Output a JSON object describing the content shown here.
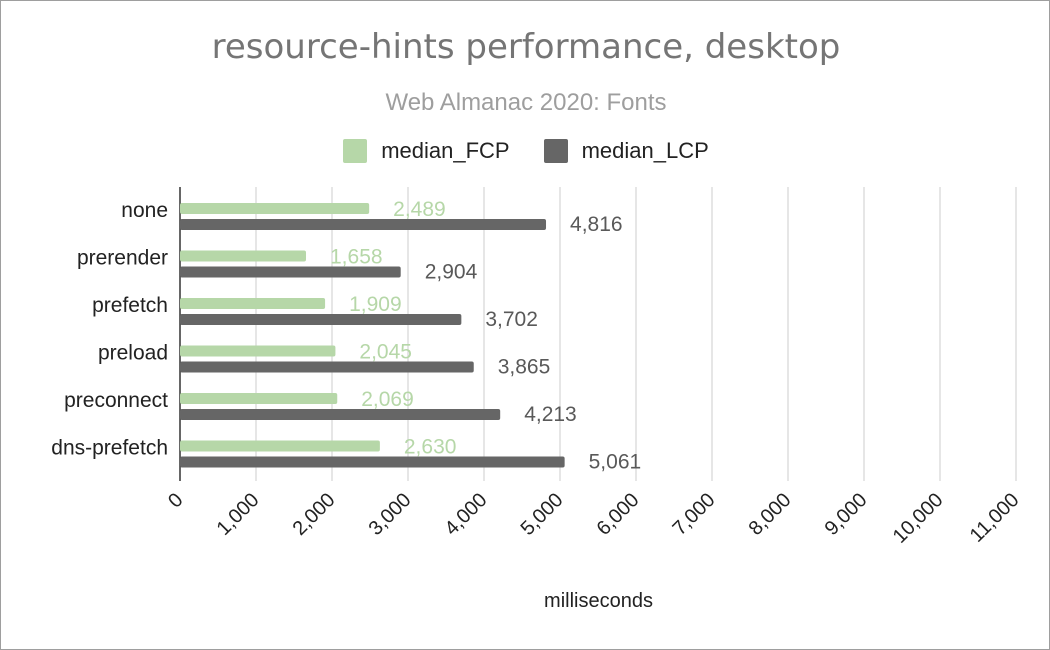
{
  "title": "resource-hints performance, desktop",
  "subtitle": "Web Almanac 2020: Fonts",
  "legend": [
    {
      "label": "median_FCP",
      "color": "#b6d7a8"
    },
    {
      "label": "median_LCP",
      "color": "#666666"
    }
  ],
  "xlabel": "milliseconds",
  "colors": {
    "fcp_label": "#b6d7a8",
    "lcp_label": "#595959",
    "grid": "#cccccc",
    "axis": "#333333"
  },
  "chart_data": {
    "type": "bar",
    "orientation": "horizontal",
    "title": "resource-hints performance, desktop",
    "subtitle": "Web Almanac 2020: Fonts",
    "xlabel": "milliseconds",
    "ylabel": "",
    "categories": [
      "none",
      "prerender",
      "prefetch",
      "preload",
      "preconnect",
      "dns-prefetch"
    ],
    "series": [
      {
        "name": "median_FCP",
        "values": [
          2489,
          1658,
          1909,
          2045,
          2069,
          2630
        ],
        "labels": [
          "2,489",
          "1,658",
          "1,909",
          "2,045",
          "2,069",
          "2,630"
        ]
      },
      {
        "name": "median_LCP",
        "values": [
          4816,
          2904,
          3702,
          3865,
          4213,
          5061
        ],
        "labels": [
          "4,816",
          "2,904",
          "3,702",
          "3,865",
          "4,213",
          "5,061"
        ]
      }
    ],
    "xlim": [
      0,
      11000
    ],
    "ticks": [
      0,
      1000,
      2000,
      3000,
      4000,
      5000,
      6000,
      7000,
      8000,
      9000,
      10000,
      11000
    ],
    "tick_labels": [
      "0",
      "1,000",
      "2,000",
      "3,000",
      "4,000",
      "5,000",
      "6,000",
      "7,000",
      "8,000",
      "9,000",
      "10,000",
      "11,000"
    ],
    "grid": true,
    "legend_position": "top"
  }
}
